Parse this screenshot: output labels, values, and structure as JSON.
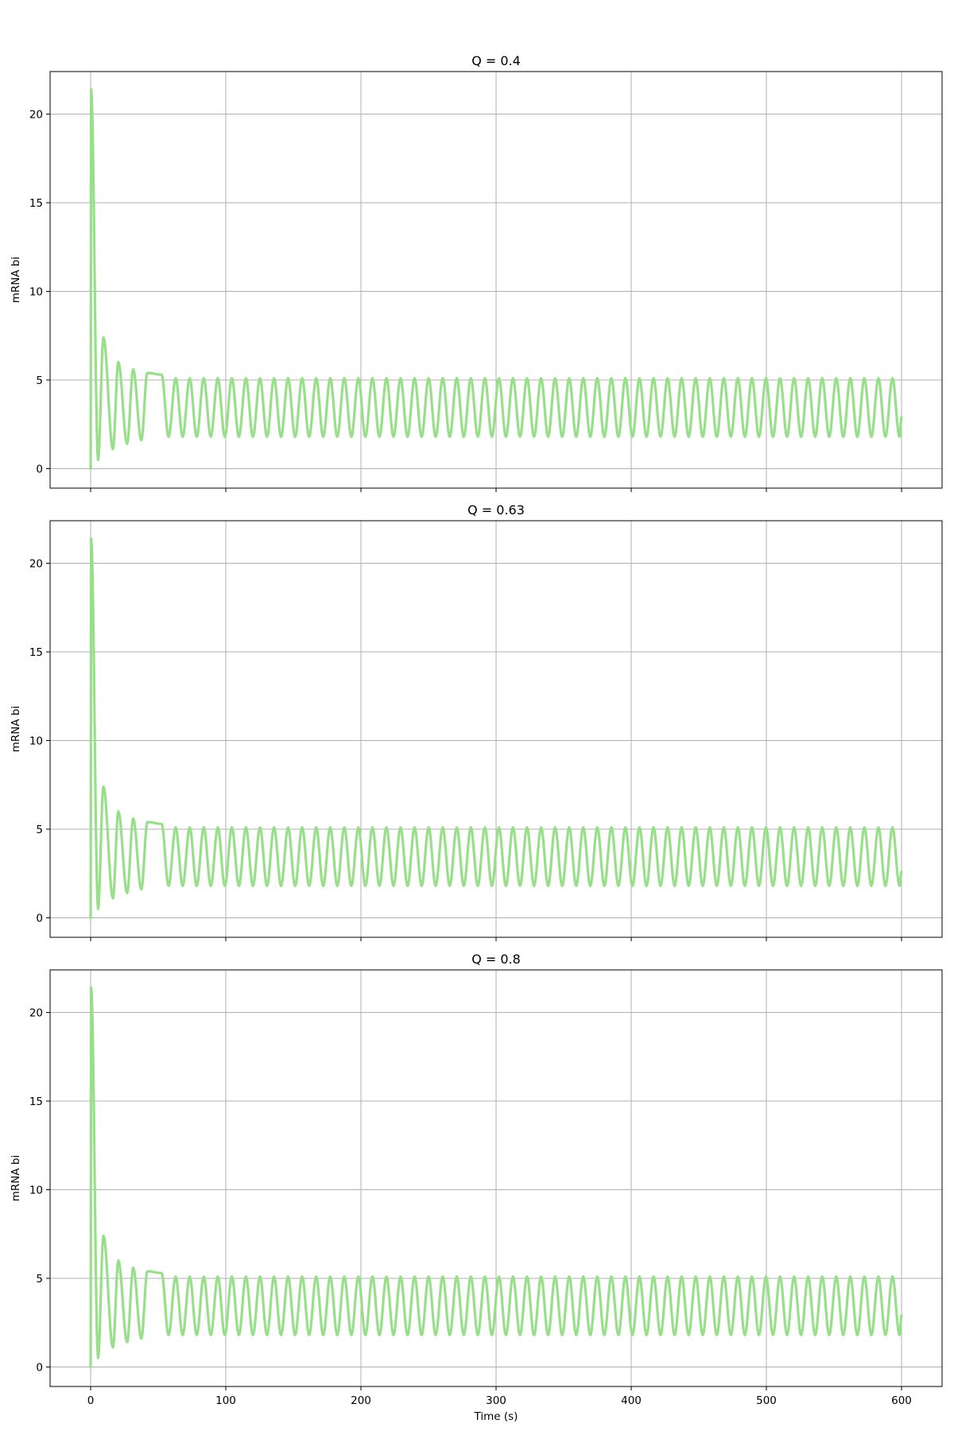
{
  "figure": {
    "xlabel": "Time (s)",
    "ylabel": "mRNA bi"
  },
  "colors": {
    "series_line": "#98df8a",
    "grid": "#b0b0b0",
    "axes": "#000000",
    "background": "#ffffff"
  },
  "chart_data": [
    {
      "type": "line",
      "title": "Q = 0.4",
      "xlabel": "",
      "ylabel": "mRNA bi",
      "xlim": [
        -30,
        630
      ],
      "ylim": [
        -1.1,
        22.4
      ],
      "xticks": [
        0,
        100,
        200,
        300,
        400,
        500,
        600
      ],
      "xtick_labels_visible": false,
      "yticks": [
        0,
        5,
        10,
        15,
        20
      ],
      "grid": true,
      "legend": "none",
      "series": [
        {
          "x_range": [
            0,
            600
          ],
          "initial_value": 0,
          "initial_peak": {
            "x": 0.4,
            "y": 21.4
          },
          "transient_peaks": [
            {
              "x": 9.5,
              "y": 7.4
            },
            {
              "x": 20.5,
              "y": 6.0
            },
            {
              "x": 31.5,
              "y": 5.6
            },
            {
              "x": 42,
              "y": 5.4
            },
            {
              "x": 52.5,
              "y": 5.3
            }
          ],
          "transient_troughs": [
            {
              "x": 5.5,
              "y": 0.5
            },
            {
              "x": 16.5,
              "y": 1.1
            },
            {
              "x": 27,
              "y": 1.4
            },
            {
              "x": 37.5,
              "y": 1.6
            }
          ],
          "steady_max": 5.1,
          "steady_min": 1.8,
          "period": 10.4,
          "end_value": 2.9
        }
      ]
    },
    {
      "type": "line",
      "title": "Q = 0.63",
      "xlabel": "",
      "ylabel": "mRNA bi",
      "xlim": [
        -30,
        630
      ],
      "ylim": [
        -1.1,
        22.4
      ],
      "xticks": [
        0,
        100,
        200,
        300,
        400,
        500,
        600
      ],
      "xtick_labels_visible": false,
      "yticks": [
        0,
        5,
        10,
        15,
        20
      ],
      "grid": true,
      "legend": "none",
      "series": [
        {
          "x_range": [
            0,
            600
          ],
          "initial_value": 0,
          "initial_peak": {
            "x": 0.4,
            "y": 21.4
          },
          "transient_peaks": [
            {
              "x": 9.5,
              "y": 7.4
            },
            {
              "x": 20.5,
              "y": 6.0
            },
            {
              "x": 31.5,
              "y": 5.6
            },
            {
              "x": 42,
              "y": 5.4
            },
            {
              "x": 52.5,
              "y": 5.3
            }
          ],
          "transient_troughs": [
            {
              "x": 5.5,
              "y": 0.5
            },
            {
              "x": 16.5,
              "y": 1.1
            },
            {
              "x": 27,
              "y": 1.4
            },
            {
              "x": 37.5,
              "y": 1.6
            }
          ],
          "steady_max": 5.1,
          "steady_min": 1.8,
          "period": 10.4,
          "end_value": 2.6
        }
      ]
    },
    {
      "type": "line",
      "title": "Q = 0.8",
      "xlabel": "Time (s)",
      "ylabel": "mRNA bi",
      "xlim": [
        -30,
        630
      ],
      "ylim": [
        -1.1,
        22.4
      ],
      "xticks": [
        0,
        100,
        200,
        300,
        400,
        500,
        600
      ],
      "xtick_labels_visible": true,
      "yticks": [
        0,
        5,
        10,
        15,
        20
      ],
      "grid": true,
      "legend": "none",
      "series": [
        {
          "x_range": [
            0,
            600
          ],
          "initial_value": 0,
          "initial_peak": {
            "x": 0.4,
            "y": 21.4
          },
          "transient_peaks": [
            {
              "x": 9.5,
              "y": 7.4
            },
            {
              "x": 20.5,
              "y": 6.0
            },
            {
              "x": 31.5,
              "y": 5.6
            },
            {
              "x": 42,
              "y": 5.4
            },
            {
              "x": 52.5,
              "y": 5.3
            }
          ],
          "transient_troughs": [
            {
              "x": 5.5,
              "y": 0.5
            },
            {
              "x": 16.5,
              "y": 1.1
            },
            {
              "x": 27,
              "y": 1.4
            },
            {
              "x": 37.5,
              "y": 1.6
            }
          ],
          "steady_max": 5.1,
          "steady_min": 1.8,
          "period": 10.4,
          "end_value": 2.9
        }
      ]
    }
  ]
}
